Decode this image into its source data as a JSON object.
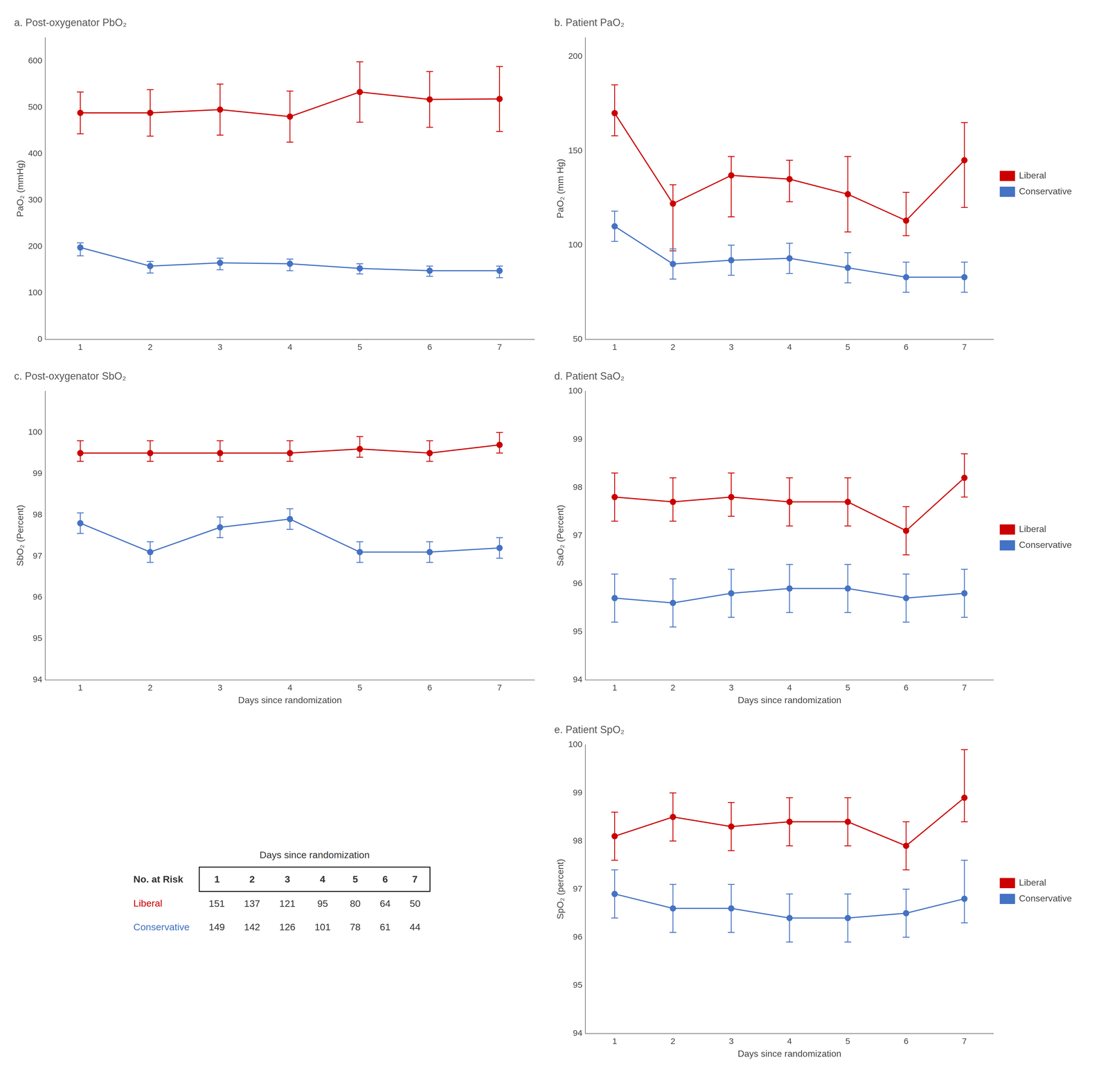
{
  "chart_data": [
    {
      "type": "line",
      "title": "a. Post-oxygenator PbO₂",
      "ylabel": "PaO₂ (mmHg)",
      "x": [
        1,
        2,
        3,
        4,
        5,
        6,
        7
      ],
      "xlim": [
        0.5,
        7.5
      ],
      "xticks": [
        1,
        2,
        3,
        4,
        5,
        6,
        7
      ],
      "ylim": [
        0,
        650
      ],
      "yticks": [
        0,
        100,
        200,
        300,
        400,
        500,
        600
      ],
      "grid": false,
      "series": [
        {
          "color": "#CC0000",
          "values": [
            488,
            488,
            495,
            480,
            533,
            517,
            518
          ],
          "err_lo": [
            45,
            50,
            55,
            55,
            65,
            60,
            70
          ],
          "err_hi": [
            45,
            50,
            55,
            55,
            65,
            60,
            70
          ]
        },
        {
          "color": "#4472C4",
          "values": [
            198,
            158,
            165,
            163,
            153,
            148,
            148
          ],
          "err_lo": [
            18,
            15,
            15,
            15,
            12,
            12,
            15
          ],
          "err_hi": [
            10,
            10,
            10,
            10,
            10,
            10,
            10
          ]
        }
      ]
    },
    {
      "type": "line",
      "title": "b. Patient PaO₂",
      "ylabel": "PaO₂ (mm Hg)",
      "x": [
        1,
        2,
        3,
        4,
        5,
        6,
        7
      ],
      "xlim": [
        0.5,
        7.5
      ],
      "xticks": [
        1,
        2,
        3,
        4,
        5,
        6,
        7
      ],
      "ylim": [
        50,
        210
      ],
      "yticks": [
        50,
        100,
        150,
        200
      ],
      "grid": false,
      "legend": "right",
      "series": [
        {
          "name": "Liberal",
          "color": "#CC0000",
          "values": [
            170,
            122,
            137,
            135,
            127,
            113,
            145
          ],
          "err_lo": [
            12,
            25,
            22,
            12,
            20,
            8,
            25
          ],
          "err_hi": [
            15,
            10,
            10,
            10,
            20,
            15,
            20
          ]
        },
        {
          "name": "Conservative",
          "color": "#4472C4",
          "values": [
            110,
            90,
            92,
            93,
            88,
            83,
            83
          ],
          "err_lo": [
            8,
            8,
            8,
            8,
            8,
            8,
            8
          ],
          "err_hi": [
            8,
            8,
            8,
            8,
            8,
            8,
            8
          ]
        }
      ]
    },
    {
      "type": "line",
      "title": "c. Post-oxygenator SbO₂",
      "ylabel": "SbO₂ (Percent)",
      "xlabel": "Days since randomization",
      "x": [
        1,
        2,
        3,
        4,
        5,
        6,
        7
      ],
      "xlim": [
        0.5,
        7.5
      ],
      "xticks": [
        1,
        2,
        3,
        4,
        5,
        6,
        7
      ],
      "ylim": [
        94,
        101
      ],
      "yticks": [
        94,
        95,
        96,
        97,
        98,
        99,
        100
      ],
      "grid": false,
      "series": [
        {
          "color": "#CC0000",
          "values": [
            99.5,
            99.5,
            99.5,
            99.5,
            99.6,
            99.5,
            99.7
          ],
          "err_lo": [
            0.2,
            0.2,
            0.2,
            0.2,
            0.2,
            0.2,
            0.2
          ],
          "err_hi": [
            0.3,
            0.3,
            0.3,
            0.3,
            0.3,
            0.3,
            0.3
          ]
        },
        {
          "color": "#4472C4",
          "values": [
            97.8,
            97.1,
            97.7,
            97.9,
            97.1,
            97.1,
            97.2
          ],
          "err_lo": [
            0.25,
            0.25,
            0.25,
            0.25,
            0.25,
            0.25,
            0.25
          ],
          "err_hi": [
            0.25,
            0.25,
            0.25,
            0.25,
            0.25,
            0.25,
            0.25
          ]
        }
      ]
    },
    {
      "type": "line",
      "title": "d. Patient SaO₂",
      "ylabel": "SaO₂ (Percent)",
      "xlabel": "Days since randomization",
      "x": [
        1,
        2,
        3,
        4,
        5,
        6,
        7
      ],
      "xlim": [
        0.5,
        7.5
      ],
      "xticks": [
        1,
        2,
        3,
        4,
        5,
        6,
        7
      ],
      "ylim": [
        94,
        100
      ],
      "yticks": [
        94,
        95,
        96,
        97,
        98,
        99,
        100
      ],
      "grid": false,
      "legend": "right",
      "series": [
        {
          "name": "Liberal",
          "color": "#CC0000",
          "values": [
            97.8,
            97.7,
            97.8,
            97.7,
            97.7,
            97.1,
            98.2
          ],
          "err_lo": [
            0.5,
            0.4,
            0.4,
            0.5,
            0.5,
            0.5,
            0.4
          ],
          "err_hi": [
            0.5,
            0.5,
            0.5,
            0.5,
            0.5,
            0.5,
            0.5
          ]
        },
        {
          "name": "Conservative",
          "color": "#4472C4",
          "values": [
            95.7,
            95.6,
            95.8,
            95.9,
            95.9,
            95.7,
            95.8
          ],
          "err_lo": [
            0.5,
            0.5,
            0.5,
            0.5,
            0.5,
            0.5,
            0.5
          ],
          "err_hi": [
            0.5,
            0.5,
            0.5,
            0.5,
            0.5,
            0.5,
            0.5
          ]
        }
      ]
    },
    {
      "type": "table",
      "title": "No. at Risk",
      "xlabel": "Days since randomization",
      "categories": [
        "1",
        "2",
        "3",
        "4",
        "5",
        "6",
        "7"
      ],
      "series": [
        {
          "name": "Liberal",
          "color": "#CC0000",
          "values": [
            151,
            137,
            121,
            95,
            80,
            64,
            50
          ]
        },
        {
          "name": "Conservative",
          "color": "#4472C4",
          "values": [
            149,
            142,
            126,
            101,
            78,
            61,
            44
          ]
        }
      ]
    },
    {
      "type": "line",
      "title": "e. Patient SpO₂",
      "ylabel": "SpO₂ (percent)",
      "xlabel": "Days since randomization",
      "x": [
        1,
        2,
        3,
        4,
        5,
        6,
        7
      ],
      "xlim": [
        0.5,
        7.5
      ],
      "xticks": [
        1,
        2,
        3,
        4,
        5,
        6,
        7
      ],
      "ylim": [
        94,
        100
      ],
      "yticks": [
        94,
        95,
        96,
        97,
        98,
        99,
        100
      ],
      "grid": false,
      "legend": "right",
      "series": [
        {
          "name": "Liberal",
          "color": "#CC0000",
          "values": [
            98.1,
            98.5,
            98.3,
            98.4,
            98.4,
            97.9,
            98.9
          ],
          "err_lo": [
            0.5,
            0.5,
            0.5,
            0.5,
            0.5,
            0.5,
            0.5
          ],
          "err_hi": [
            0.5,
            0.5,
            0.5,
            0.5,
            0.5,
            0.5,
            1.0
          ]
        },
        {
          "name": "Conservative",
          "color": "#4472C4",
          "values": [
            96.9,
            96.6,
            96.6,
            96.4,
            96.4,
            96.5,
            96.8
          ],
          "err_lo": [
            0.5,
            0.5,
            0.5,
            0.5,
            0.5,
            0.5,
            0.5
          ],
          "err_hi": [
            0.5,
            0.5,
            0.5,
            0.5,
            0.5,
            0.5,
            0.8
          ]
        }
      ]
    }
  ]
}
